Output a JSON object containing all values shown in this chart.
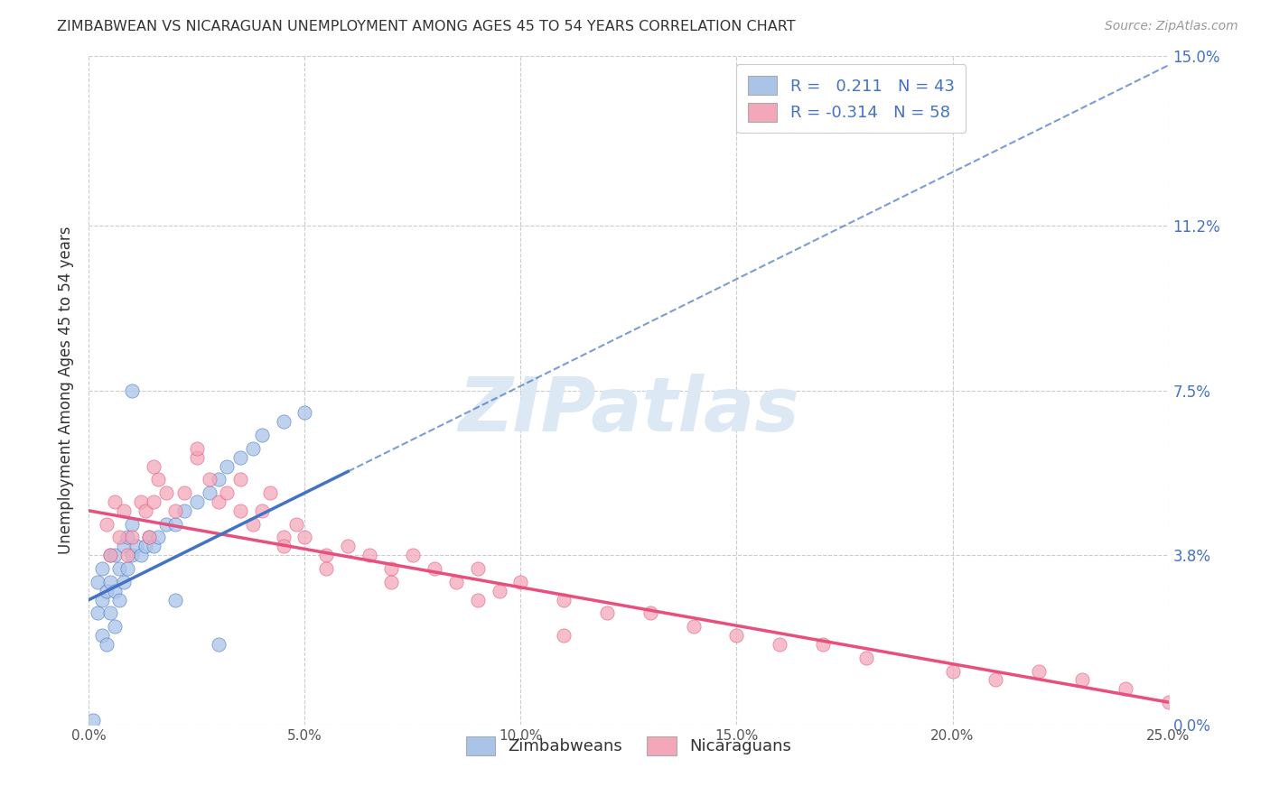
{
  "title": "ZIMBABWEAN VS NICARAGUAN UNEMPLOYMENT AMONG AGES 45 TO 54 YEARS CORRELATION CHART",
  "source": "Source: ZipAtlas.com",
  "ylabel": "Unemployment Among Ages 45 to 54 years",
  "xlabel_ticks": [
    "0.0%",
    "5.0%",
    "10.0%",
    "15.0%",
    "20.0%",
    "25.0%"
  ],
  "xlabel_vals": [
    0.0,
    0.05,
    0.1,
    0.15,
    0.2,
    0.25
  ],
  "ylabel_ticks": [
    "0.0%",
    "3.8%",
    "7.5%",
    "11.2%",
    "15.0%"
  ],
  "ylabel_vals": [
    0.0,
    0.038,
    0.075,
    0.112,
    0.15
  ],
  "xlim": [
    0.0,
    0.25
  ],
  "ylim": [
    0.0,
    0.15
  ],
  "R_zimbabwe": 0.211,
  "N_zimbabwe": 43,
  "R_nicaragua": -0.314,
  "N_nicaragua": 58,
  "zimbabwe_color": "#aac4e8",
  "nicaragua_color": "#f4a7b9",
  "trendline_zimbabwe_color": "#4472c4",
  "trendline_nicaragua_color": "#e84f7c",
  "watermark_color": "#dce8f4",
  "background_color": "#ffffff",
  "grid_color": "#cccccc",
  "zim_x": [
    0.001,
    0.002,
    0.002,
    0.003,
    0.003,
    0.003,
    0.004,
    0.004,
    0.005,
    0.005,
    0.005,
    0.006,
    0.006,
    0.006,
    0.007,
    0.007,
    0.008,
    0.008,
    0.009,
    0.009,
    0.01,
    0.01,
    0.011,
    0.012,
    0.013,
    0.014,
    0.015,
    0.016,
    0.018,
    0.02,
    0.022,
    0.025,
    0.028,
    0.03,
    0.032,
    0.035,
    0.038,
    0.04,
    0.045,
    0.05,
    0.01,
    0.02,
    0.03
  ],
  "zim_y": [
    0.001,
    0.025,
    0.032,
    0.02,
    0.028,
    0.035,
    0.018,
    0.03,
    0.025,
    0.032,
    0.038,
    0.022,
    0.03,
    0.038,
    0.028,
    0.035,
    0.032,
    0.04,
    0.035,
    0.042,
    0.038,
    0.045,
    0.04,
    0.038,
    0.04,
    0.042,
    0.04,
    0.042,
    0.045,
    0.045,
    0.048,
    0.05,
    0.052,
    0.055,
    0.058,
    0.06,
    0.062,
    0.065,
    0.068,
    0.07,
    0.075,
    0.028,
    0.018
  ],
  "nic_x": [
    0.004,
    0.005,
    0.006,
    0.007,
    0.008,
    0.009,
    0.01,
    0.012,
    0.013,
    0.014,
    0.015,
    0.016,
    0.018,
    0.02,
    0.022,
    0.025,
    0.028,
    0.03,
    0.032,
    0.035,
    0.038,
    0.04,
    0.042,
    0.045,
    0.048,
    0.05,
    0.055,
    0.06,
    0.065,
    0.07,
    0.075,
    0.08,
    0.085,
    0.09,
    0.095,
    0.1,
    0.11,
    0.12,
    0.13,
    0.14,
    0.15,
    0.16,
    0.17,
    0.18,
    0.2,
    0.21,
    0.22,
    0.23,
    0.24,
    0.25,
    0.015,
    0.025,
    0.035,
    0.045,
    0.055,
    0.07,
    0.09,
    0.11
  ],
  "nic_y": [
    0.045,
    0.038,
    0.05,
    0.042,
    0.048,
    0.038,
    0.042,
    0.05,
    0.048,
    0.042,
    0.05,
    0.055,
    0.052,
    0.048,
    0.052,
    0.06,
    0.055,
    0.05,
    0.052,
    0.048,
    0.045,
    0.048,
    0.052,
    0.042,
    0.045,
    0.042,
    0.038,
    0.04,
    0.038,
    0.035,
    0.038,
    0.035,
    0.032,
    0.035,
    0.03,
    0.032,
    0.028,
    0.025,
    0.025,
    0.022,
    0.02,
    0.018,
    0.018,
    0.015,
    0.012,
    0.01,
    0.012,
    0.01,
    0.008,
    0.005,
    0.058,
    0.062,
    0.055,
    0.04,
    0.035,
    0.032,
    0.028,
    0.02
  ],
  "zim_trend_x0": 0.0,
  "zim_trend_y0": 0.028,
  "zim_trend_x1": 0.25,
  "zim_trend_y1": 0.148,
  "nic_trend_x0": 0.0,
  "nic_trend_y0": 0.048,
  "nic_trend_x1": 0.25,
  "nic_trend_y1": 0.005
}
